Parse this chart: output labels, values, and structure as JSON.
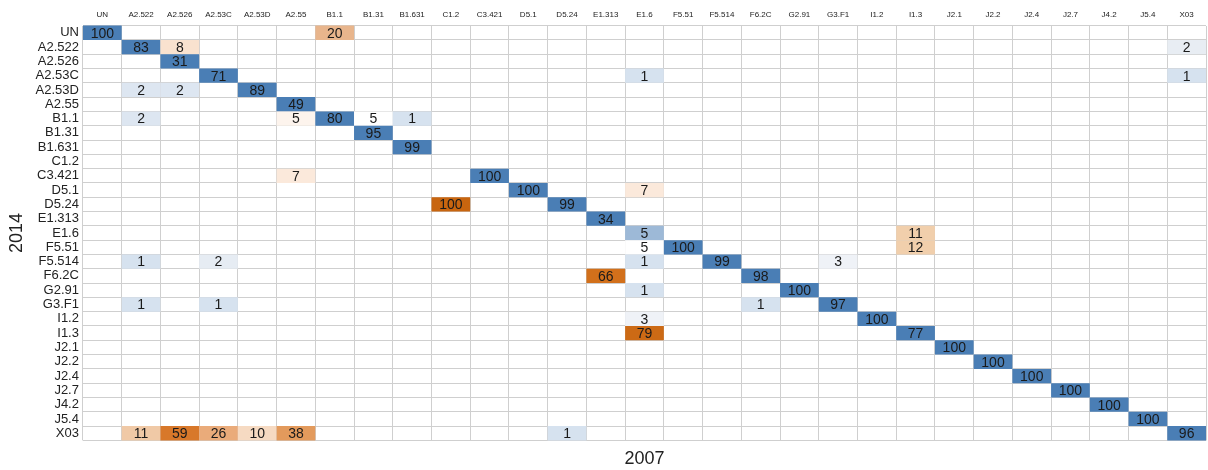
{
  "chart_data": {
    "type": "heatmap",
    "xlabel": "2007",
    "ylabel": "2014",
    "data_labels": true,
    "grid": true,
    "legend": false,
    "categories": [
      "UN",
      "A2.522",
      "A2.526",
      "A2.53C",
      "A2.53D",
      "A2.55",
      "B1.1",
      "B1.31",
      "B1.631",
      "C1.2",
      "C3.421",
      "D5.1",
      "D5.24",
      "E1.313",
      "E1.6",
      "F5.51",
      "F5.514",
      "F6.2C",
      "G2.91",
      "G3.F1",
      "I1.2",
      "I1.3",
      "J2.1",
      "J2.2",
      "J2.4",
      "J2.7",
      "J4.2",
      "J5.4",
      "X03"
    ],
    "y_categories": [
      "UN",
      "A2.522",
      "A2.526",
      "A2.53C",
      "A2.53D",
      "A2.55",
      "B1.1",
      "B1.31",
      "B1.631",
      "C1.2",
      "C3.421",
      "D5.1",
      "D5.24",
      "E1.313",
      "E1.6",
      "F5.51",
      "F5.514",
      "F6.2C",
      "G2.91",
      "G3.F1",
      "I1.2",
      "I1.3",
      "J2.1",
      "J2.2",
      "J2.4",
      "J2.7",
      "J4.2",
      "J5.4",
      "X03"
    ],
    "cells": [
      [
        100,
        null,
        null,
        null,
        null,
        null,
        20,
        null,
        null,
        null,
        null,
        null,
        null,
        null,
        null,
        null,
        null,
        null,
        null,
        null,
        null,
        null,
        null,
        null,
        null,
        null,
        null,
        null,
        null
      ],
      [
        null,
        83,
        8,
        null,
        null,
        null,
        null,
        null,
        null,
        null,
        null,
        null,
        null,
        null,
        null,
        null,
        null,
        null,
        null,
        null,
        null,
        null,
        null,
        null,
        null,
        null,
        null,
        null,
        2
      ],
      [
        null,
        null,
        31,
        null,
        null,
        null,
        null,
        null,
        null,
        null,
        null,
        null,
        null,
        null,
        null,
        null,
        null,
        null,
        null,
        null,
        null,
        null,
        null,
        null,
        null,
        null,
        null,
        null,
        null
      ],
      [
        null,
        null,
        null,
        71,
        null,
        null,
        null,
        null,
        null,
        null,
        null,
        null,
        null,
        null,
        1,
        null,
        null,
        null,
        null,
        null,
        null,
        null,
        null,
        null,
        null,
        null,
        null,
        null,
        1
      ],
      [
        null,
        2,
        2,
        null,
        89,
        null,
        null,
        null,
        null,
        null,
        null,
        null,
        null,
        null,
        null,
        null,
        null,
        null,
        null,
        null,
        null,
        null,
        null,
        null,
        null,
        null,
        null,
        null,
        null
      ],
      [
        null,
        null,
        null,
        null,
        null,
        49,
        null,
        null,
        null,
        null,
        null,
        null,
        null,
        null,
        null,
        null,
        null,
        null,
        null,
        null,
        null,
        null,
        null,
        null,
        null,
        null,
        null,
        null,
        null
      ],
      [
        null,
        2,
        null,
        null,
        null,
        5,
        80,
        5,
        1,
        null,
        null,
        null,
        null,
        null,
        null,
        null,
        null,
        null,
        null,
        null,
        null,
        null,
        null,
        null,
        null,
        null,
        null,
        null,
        null
      ],
      [
        null,
        null,
        null,
        null,
        null,
        null,
        null,
        95,
        null,
        null,
        null,
        null,
        null,
        null,
        null,
        null,
        null,
        null,
        null,
        null,
        null,
        null,
        null,
        null,
        null,
        null,
        null,
        null,
        null
      ],
      [
        null,
        null,
        null,
        null,
        null,
        null,
        null,
        null,
        99,
        null,
        null,
        null,
        null,
        null,
        null,
        null,
        null,
        null,
        null,
        null,
        null,
        null,
        null,
        null,
        null,
        null,
        null,
        null,
        null
      ],
      [
        null,
        null,
        null,
        null,
        null,
        null,
        null,
        null,
        null,
        null,
        null,
        null,
        null,
        null,
        null,
        null,
        null,
        null,
        null,
        null,
        null,
        null,
        null,
        null,
        null,
        null,
        null,
        null,
        null
      ],
      [
        null,
        null,
        null,
        null,
        null,
        7,
        null,
        null,
        null,
        null,
        100,
        null,
        null,
        null,
        null,
        null,
        null,
        null,
        null,
        null,
        null,
        null,
        null,
        null,
        null,
        null,
        null,
        null,
        null
      ],
      [
        null,
        null,
        null,
        null,
        null,
        null,
        null,
        null,
        null,
        null,
        null,
        100,
        null,
        null,
        7,
        null,
        null,
        null,
        null,
        null,
        null,
        null,
        null,
        null,
        null,
        null,
        null,
        null,
        null
      ],
      [
        null,
        null,
        null,
        null,
        null,
        null,
        null,
        null,
        null,
        100,
        null,
        null,
        99,
        null,
        null,
        null,
        null,
        null,
        null,
        null,
        null,
        null,
        null,
        null,
        null,
        null,
        null,
        null,
        null
      ],
      [
        null,
        null,
        null,
        null,
        null,
        null,
        null,
        null,
        null,
        null,
        null,
        null,
        null,
        34,
        null,
        null,
        null,
        null,
        null,
        null,
        null,
        null,
        null,
        null,
        null,
        null,
        null,
        null,
        null
      ],
      [
        null,
        null,
        null,
        null,
        null,
        null,
        null,
        null,
        null,
        null,
        null,
        null,
        null,
        null,
        5,
        null,
        null,
        null,
        null,
        null,
        null,
        11,
        null,
        null,
        null,
        null,
        null,
        null,
        null
      ],
      [
        null,
        null,
        null,
        null,
        null,
        null,
        null,
        null,
        null,
        null,
        null,
        null,
        null,
        null,
        5,
        100,
        null,
        null,
        null,
        null,
        null,
        12,
        null,
        null,
        null,
        null,
        null,
        null,
        null
      ],
      [
        null,
        1,
        null,
        2,
        null,
        null,
        null,
        null,
        null,
        null,
        null,
        null,
        null,
        null,
        1,
        null,
        99,
        null,
        null,
        3,
        null,
        null,
        null,
        null,
        null,
        null,
        null,
        null,
        null
      ],
      [
        null,
        null,
        null,
        null,
        null,
        null,
        null,
        null,
        null,
        null,
        null,
        null,
        null,
        66,
        null,
        null,
        null,
        98,
        null,
        null,
        null,
        null,
        null,
        null,
        null,
        null,
        null,
        null,
        null
      ],
      [
        null,
        null,
        null,
        null,
        null,
        null,
        null,
        null,
        null,
        null,
        null,
        null,
        null,
        null,
        1,
        null,
        null,
        null,
        100,
        null,
        null,
        null,
        null,
        null,
        null,
        null,
        null,
        null,
        null
      ],
      [
        null,
        1,
        null,
        1,
        null,
        null,
        null,
        null,
        null,
        null,
        null,
        null,
        null,
        null,
        null,
        null,
        null,
        1,
        null,
        97,
        null,
        null,
        null,
        null,
        null,
        null,
        null,
        null,
        null
      ],
      [
        null,
        null,
        null,
        null,
        null,
        null,
        null,
        null,
        null,
        null,
        null,
        null,
        null,
        null,
        3,
        null,
        null,
        null,
        null,
        null,
        100,
        null,
        null,
        null,
        null,
        null,
        null,
        null,
        null
      ],
      [
        null,
        null,
        null,
        null,
        null,
        null,
        null,
        null,
        null,
        null,
        null,
        null,
        null,
        null,
        79,
        null,
        null,
        null,
        null,
        null,
        null,
        77,
        null,
        null,
        null,
        null,
        null,
        null,
        null
      ],
      [
        null,
        null,
        null,
        null,
        null,
        null,
        null,
        null,
        null,
        null,
        null,
        null,
        null,
        null,
        null,
        null,
        null,
        null,
        null,
        null,
        null,
        null,
        100,
        null,
        null,
        null,
        null,
        null,
        null
      ],
      [
        null,
        null,
        null,
        null,
        null,
        null,
        null,
        null,
        null,
        null,
        null,
        null,
        null,
        null,
        null,
        null,
        null,
        null,
        null,
        null,
        null,
        null,
        null,
        100,
        null,
        null,
        null,
        null,
        null
      ],
      [
        null,
        null,
        null,
        null,
        null,
        null,
        null,
        null,
        null,
        null,
        null,
        null,
        null,
        null,
        null,
        null,
        null,
        null,
        null,
        null,
        null,
        null,
        null,
        null,
        100,
        null,
        null,
        null,
        null
      ],
      [
        null,
        null,
        null,
        null,
        null,
        null,
        null,
        null,
        null,
        null,
        null,
        null,
        null,
        null,
        null,
        null,
        null,
        null,
        null,
        null,
        null,
        null,
        null,
        null,
        null,
        100,
        null,
        null,
        null
      ],
      [
        null,
        null,
        null,
        null,
        null,
        null,
        null,
        null,
        null,
        null,
        null,
        null,
        null,
        null,
        null,
        null,
        null,
        null,
        null,
        null,
        null,
        null,
        null,
        null,
        null,
        null,
        100,
        null,
        null
      ],
      [
        null,
        null,
        null,
        null,
        null,
        null,
        null,
        null,
        null,
        null,
        null,
        null,
        null,
        null,
        null,
        null,
        null,
        null,
        null,
        null,
        null,
        null,
        null,
        null,
        null,
        null,
        null,
        100,
        null
      ],
      [
        null,
        11,
        59,
        26,
        10,
        38,
        null,
        null,
        null,
        null,
        null,
        null,
        1,
        null,
        null,
        null,
        null,
        null,
        null,
        null,
        null,
        null,
        null,
        null,
        null,
        null,
        null,
        null,
        96
      ]
    ],
    "colors": [
      [
        "#4a7eb5",
        null,
        null,
        null,
        null,
        null,
        "#e8b58c",
        null,
        null,
        null,
        null,
        null,
        null,
        null,
        null,
        null,
        null,
        null,
        null,
        null,
        null,
        null,
        null,
        null,
        null,
        null,
        null,
        null,
        null
      ],
      [
        null,
        "#4a7eb5",
        "#f9e2cf",
        null,
        null,
        null,
        null,
        null,
        null,
        null,
        null,
        null,
        null,
        null,
        null,
        null,
        null,
        null,
        null,
        null,
        null,
        null,
        null,
        null,
        null,
        null,
        null,
        null,
        "#e8edf3"
      ],
      [
        null,
        null,
        "#4a7eb5",
        null,
        null,
        null,
        null,
        null,
        null,
        null,
        null,
        null,
        null,
        null,
        null,
        null,
        null,
        null,
        null,
        null,
        null,
        null,
        null,
        null,
        null,
        null,
        null,
        null,
        null
      ],
      [
        null,
        null,
        null,
        "#4a7eb5",
        null,
        null,
        null,
        null,
        null,
        null,
        null,
        null,
        null,
        null,
        "#d6e2ef",
        null,
        null,
        null,
        null,
        null,
        null,
        null,
        null,
        null,
        null,
        null,
        null,
        null,
        "#d6e2ef"
      ],
      [
        null,
        "#dde6f1",
        "#dde6f1",
        null,
        "#4a7eb5",
        null,
        null,
        null,
        null,
        null,
        null,
        null,
        null,
        null,
        null,
        null,
        null,
        null,
        null,
        null,
        null,
        null,
        null,
        null,
        null,
        null,
        null,
        null,
        null
      ],
      [
        null,
        null,
        null,
        null,
        null,
        "#4a7eb5",
        null,
        null,
        null,
        null,
        null,
        null,
        null,
        null,
        null,
        null,
        null,
        null,
        null,
        null,
        null,
        null,
        null,
        null,
        null,
        null,
        null,
        null,
        null
      ],
      [
        null,
        "#dde6f1",
        null,
        null,
        null,
        "#fdf4ed",
        "#4a7eb5",
        "#ffffff",
        "#d6e2ef",
        null,
        null,
        null,
        null,
        null,
        null,
        null,
        null,
        null,
        null,
        null,
        null,
        null,
        null,
        null,
        null,
        null,
        null,
        null,
        null
      ],
      [
        null,
        null,
        null,
        null,
        null,
        null,
        null,
        "#4a7eb5",
        null,
        null,
        null,
        null,
        null,
        null,
        null,
        null,
        null,
        null,
        null,
        null,
        null,
        null,
        null,
        null,
        null,
        null,
        null,
        null,
        null
      ],
      [
        null,
        null,
        null,
        null,
        null,
        null,
        null,
        null,
        "#4a7eb5",
        null,
        null,
        null,
        null,
        null,
        null,
        null,
        null,
        null,
        null,
        null,
        null,
        null,
        null,
        null,
        null,
        null,
        null,
        null,
        null
      ],
      [
        null,
        null,
        null,
        null,
        null,
        null,
        null,
        null,
        null,
        null,
        null,
        null,
        null,
        null,
        null,
        null,
        null,
        null,
        null,
        null,
        null,
        null,
        null,
        null,
        null,
        null,
        null,
        null,
        null
      ],
      [
        null,
        null,
        null,
        null,
        null,
        "#fbe9db",
        null,
        null,
        null,
        null,
        "#4a7eb5",
        null,
        null,
        null,
        null,
        null,
        null,
        null,
        null,
        null,
        null,
        null,
        null,
        null,
        null,
        null,
        null,
        null,
        null
      ],
      [
        null,
        null,
        null,
        null,
        null,
        null,
        null,
        null,
        null,
        null,
        null,
        "#4a7eb5",
        null,
        null,
        "#fbe9db",
        null,
        null,
        null,
        null,
        null,
        null,
        null,
        null,
        null,
        null,
        null,
        null,
        null,
        null
      ],
      [
        null,
        null,
        null,
        null,
        null,
        null,
        null,
        null,
        null,
        "#c8650f",
        null,
        null,
        "#4a7eb5",
        null,
        null,
        null,
        null,
        null,
        null,
        null,
        null,
        null,
        null,
        null,
        null,
        null,
        null,
        null,
        null
      ],
      [
        null,
        null,
        null,
        null,
        null,
        null,
        null,
        null,
        null,
        null,
        null,
        null,
        null,
        "#4a7eb5",
        null,
        null,
        null,
        null,
        null,
        null,
        null,
        null,
        null,
        null,
        null,
        null,
        null,
        null,
        null
      ],
      [
        null,
        null,
        null,
        null,
        null,
        null,
        null,
        null,
        null,
        null,
        null,
        null,
        null,
        null,
        "#9db9d7",
        null,
        null,
        null,
        null,
        null,
        null,
        "#f1cfac",
        null,
        null,
        null,
        null,
        null,
        null,
        null
      ],
      [
        null,
        null,
        null,
        null,
        null,
        null,
        null,
        null,
        null,
        null,
        null,
        null,
        null,
        null,
        "#ffffff",
        "#4a7eb5",
        null,
        null,
        null,
        null,
        null,
        "#f1cfac",
        null,
        null,
        null,
        null,
        null,
        null,
        null
      ],
      [
        null,
        "#d6e2ef",
        null,
        "#e6ecf3",
        null,
        null,
        null,
        null,
        null,
        null,
        null,
        null,
        null,
        null,
        "#d6e2ef",
        null,
        "#4a7eb5",
        null,
        null,
        "#eff2f7",
        null,
        null,
        null,
        null,
        null,
        null,
        null,
        null,
        null
      ],
      [
        null,
        null,
        null,
        null,
        null,
        null,
        null,
        null,
        null,
        null,
        null,
        null,
        null,
        "#d2701b",
        null,
        null,
        null,
        "#4a7eb5",
        null,
        null,
        null,
        null,
        null,
        null,
        null,
        null,
        null,
        null,
        null
      ],
      [
        null,
        null,
        null,
        null,
        null,
        null,
        null,
        null,
        null,
        null,
        null,
        null,
        null,
        null,
        "#d6e2ef",
        null,
        null,
        null,
        "#4a7eb5",
        null,
        null,
        null,
        null,
        null,
        null,
        null,
        null,
        null,
        null
      ],
      [
        null,
        "#d6e2ef",
        null,
        "#d6e2ef",
        null,
        null,
        null,
        null,
        null,
        null,
        null,
        null,
        null,
        null,
        null,
        null,
        null,
        "#d6e2ef",
        null,
        "#4a7eb5",
        null,
        null,
        null,
        null,
        null,
        null,
        null,
        null,
        null
      ],
      [
        null,
        null,
        null,
        null,
        null,
        null,
        null,
        null,
        null,
        null,
        null,
        null,
        null,
        null,
        "#eff2f7",
        null,
        null,
        null,
        null,
        null,
        "#4a7eb5",
        null,
        null,
        null,
        null,
        null,
        null,
        null,
        null
      ],
      [
        null,
        null,
        null,
        null,
        null,
        null,
        null,
        null,
        null,
        null,
        null,
        null,
        null,
        null,
        "#cc6a15",
        null,
        null,
        null,
        null,
        null,
        null,
        "#4a7eb5",
        null,
        null,
        null,
        null,
        null,
        null,
        null
      ],
      [
        null,
        null,
        null,
        null,
        null,
        null,
        null,
        null,
        null,
        null,
        null,
        null,
        null,
        null,
        null,
        null,
        null,
        null,
        null,
        null,
        null,
        null,
        "#4a7eb5",
        null,
        null,
        null,
        null,
        null,
        null
      ],
      [
        null,
        null,
        null,
        null,
        null,
        null,
        null,
        null,
        null,
        null,
        null,
        null,
        null,
        null,
        null,
        null,
        null,
        null,
        null,
        null,
        null,
        null,
        null,
        "#4a7eb5",
        null,
        null,
        null,
        null,
        null
      ],
      [
        null,
        null,
        null,
        null,
        null,
        null,
        null,
        null,
        null,
        null,
        null,
        null,
        null,
        null,
        null,
        null,
        null,
        null,
        null,
        null,
        null,
        null,
        null,
        null,
        "#4a7eb5",
        null,
        null,
        null,
        null
      ],
      [
        null,
        null,
        null,
        null,
        null,
        null,
        null,
        null,
        null,
        null,
        null,
        null,
        null,
        null,
        null,
        null,
        null,
        null,
        null,
        null,
        null,
        null,
        null,
        null,
        null,
        "#4a7eb5",
        null,
        null,
        null
      ],
      [
        null,
        null,
        null,
        null,
        null,
        null,
        null,
        null,
        null,
        null,
        null,
        null,
        null,
        null,
        null,
        null,
        null,
        null,
        null,
        null,
        null,
        null,
        null,
        null,
        null,
        null,
        "#4a7eb5",
        null,
        null
      ],
      [
        null,
        null,
        null,
        null,
        null,
        null,
        null,
        null,
        null,
        null,
        null,
        null,
        null,
        null,
        null,
        null,
        null,
        null,
        null,
        null,
        null,
        null,
        null,
        null,
        null,
        null,
        null,
        "#4a7eb5",
        null
      ],
      [
        null,
        "#f0c9a6",
        "#d8782a",
        "#eaab7a",
        "#f6dac2",
        "#e39a5c",
        null,
        null,
        null,
        null,
        null,
        null,
        "#d6e2ef",
        null,
        null,
        null,
        null,
        null,
        null,
        null,
        null,
        null,
        null,
        null,
        null,
        null,
        null,
        null,
        "#4a7eb5"
      ]
    ]
  }
}
